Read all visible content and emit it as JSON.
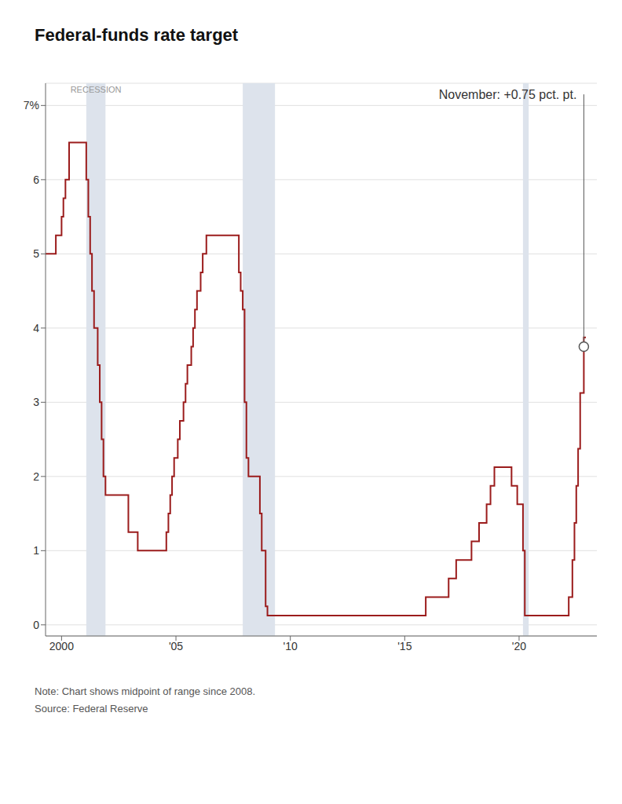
{
  "chart_data": {
    "type": "line",
    "title": "Federal-funds rate target",
    "notes": [
      "Note: Chart shows midpoint of range since 2008.",
      "Source: Federal Reserve"
    ],
    "series": [
      {
        "color": "#9b1c1c",
        "line_style": "step",
        "x": [
          1999.3,
          1999.5,
          1999.75,
          2000.0,
          2000.08,
          2000.17,
          2000.33,
          2000.5,
          2000.58,
          2000.67,
          2000.75,
          2000.83,
          2000.92,
          2001.0,
          2001.08,
          2001.17,
          2001.25,
          2001.33,
          2001.42,
          2001.58,
          2001.67,
          2001.75,
          2001.83,
          2001.92,
          2002.0,
          2002.08,
          2002.17,
          2002.5,
          2002.83,
          2002.92,
          2003.0,
          2003.33,
          2003.5,
          2003.75,
          2004.0,
          2004.17,
          2004.33,
          2004.5,
          2004.58,
          2004.67,
          2004.75,
          2004.83,
          2004.92,
          2005.0,
          2005.08,
          2005.17,
          2005.33,
          2005.42,
          2005.5,
          2005.67,
          2005.75,
          2005.83,
          2005.92,
          2006.0,
          2006.08,
          2006.17,
          2006.33,
          2006.5,
          2006.67,
          2006.83,
          2007.0,
          2007.17,
          2007.33,
          2007.5,
          2007.67,
          2007.75,
          2007.83,
          2007.92,
          2008.0,
          2008.08,
          2008.17,
          2008.25,
          2008.5,
          2008.58,
          2008.67,
          2008.75,
          2008.92,
          2009.0,
          2009.33,
          2009.5,
          2010.0,
          2010.5,
          2011.0,
          2011.5,
          2012.0,
          2012.5,
          2013.0,
          2013.5,
          2014.0,
          2014.5,
          2015.0,
          2015.25,
          2015.5,
          2015.75,
          2015.92,
          2016.0,
          2016.25,
          2016.5,
          2016.75,
          2016.92,
          2017.0,
          2017.08,
          2017.25,
          2017.5,
          2017.75,
          2017.92,
          2018.0,
          2018.17,
          2018.25,
          2018.5,
          2018.58,
          2018.75,
          2018.92,
          2019.0,
          2019.17,
          2019.33,
          2019.5,
          2019.58,
          2019.67,
          2019.75,
          2019.83,
          2019.92,
          2020.0,
          2020.08,
          2020.17,
          2020.25,
          2020.33,
          2020.5,
          2020.75,
          2021.0,
          2021.5,
          2022.0,
          2022.08,
          2022.17,
          2022.33,
          2022.42,
          2022.5,
          2022.58,
          2022.67,
          2022.75,
          2022.83,
          2022.92
        ],
        "values": [
          5.0,
          5.0,
          5.25,
          5.5,
          5.75,
          6.0,
          6.5,
          6.5,
          6.5,
          6.5,
          6.5,
          6.5,
          6.5,
          6.5,
          6.0,
          5.5,
          5.0,
          4.5,
          4.0,
          3.5,
          3.0,
          2.5,
          2.0,
          1.75,
          1.75,
          1.75,
          1.75,
          1.75,
          1.75,
          1.25,
          1.25,
          1.0,
          1.0,
          1.0,
          1.0,
          1.0,
          1.0,
          1.0,
          1.25,
          1.5,
          1.75,
          2.0,
          2.25,
          2.25,
          2.5,
          2.75,
          3.0,
          3.25,
          3.5,
          3.75,
          4.0,
          4.25,
          4.5,
          4.5,
          4.75,
          5.0,
          5.25,
          5.25,
          5.25,
          5.25,
          5.25,
          5.25,
          5.25,
          5.25,
          5.25,
          4.75,
          4.5,
          4.25,
          3.0,
          2.25,
          2.0,
          2.0,
          2.0,
          2.0,
          1.5,
          1.0,
          0.25,
          0.125,
          0.125,
          0.125,
          0.125,
          0.125,
          0.125,
          0.125,
          0.125,
          0.125,
          0.125,
          0.125,
          0.125,
          0.125,
          0.125,
          0.125,
          0.125,
          0.125,
          0.375,
          0.375,
          0.375,
          0.375,
          0.375,
          0.625,
          0.625,
          0.625,
          0.875,
          0.875,
          0.875,
          1.125,
          1.125,
          1.125,
          1.375,
          1.375,
          1.625,
          1.875,
          2.125,
          2.125,
          2.125,
          2.125,
          2.125,
          2.125,
          1.875,
          1.875,
          1.875,
          1.625,
          1.625,
          1.625,
          1.0,
          0.125,
          0.125,
          0.125,
          0.125,
          0.125,
          0.125,
          0.125,
          0.125,
          0.375,
          0.875,
          1.375,
          1.875,
          2.375,
          3.125,
          3.125,
          3.875,
          3.875
        ]
      }
    ],
    "xlim": [
      1999.3,
      2023.4
    ],
    "xticks": [
      2000,
      {
        "value": 2005,
        "label": "'05"
      },
      {
        "value": 2010,
        "label": "'10"
      },
      {
        "value": 2015,
        "label": "'15"
      },
      {
        "value": 2020,
        "label": "'20"
      }
    ],
    "ylim": [
      -0.15,
      7.3
    ],
    "yticks": [
      0,
      1,
      2,
      3,
      4,
      5,
      6,
      {
        "value": 7,
        "label": "7%"
      }
    ],
    "grid": true,
    "recessions": {
      "label": "RECESSION",
      "color": "#dde3ec",
      "ranges": [
        [
          2001.08,
          2001.92
        ],
        [
          2007.92,
          2009.33
        ],
        [
          2020.17,
          2020.42
        ]
      ]
    },
    "annotation": {
      "text": "November: +0.75 pct. pt.",
      "x": 2022.83,
      "y": 3.75,
      "y_top": 7.15,
      "color": "#555555"
    }
  }
}
